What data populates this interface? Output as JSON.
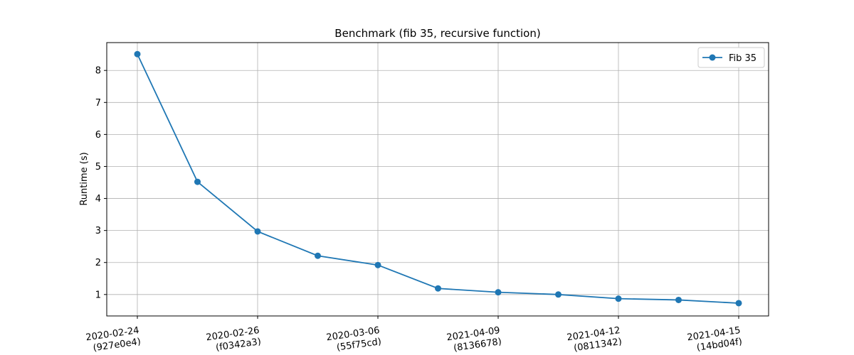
{
  "chart_data": {
    "type": "line",
    "title": "Benchmark (fib 35, recursive function)",
    "xlabel": "",
    "ylabel": "Runtime (s)",
    "ylim": [
      0.33,
      8.87
    ],
    "y_ticks": [
      1,
      2,
      3,
      4,
      5,
      6,
      7,
      8
    ],
    "x_tick_labels": [
      "2020-02-24\n(927e0e4)",
      "2020-02-26\n(f0342a3)",
      "2020-03-06\n(55f75cd)",
      "2021-04-09\n(8136678)",
      "2021-04-12\n(0811342)",
      "2021-04-15\n(14bd04f)"
    ],
    "x_tick_every": 2,
    "grid": true,
    "legend": "top-right",
    "series": [
      {
        "name": "Fib 35",
        "color": "#1f77b4",
        "marker": "circle",
        "values": [
          8.51,
          4.52,
          2.97,
          2.21,
          1.92,
          1.19,
          1.07,
          1.0,
          0.87,
          0.83,
          0.73
        ]
      }
    ]
  }
}
